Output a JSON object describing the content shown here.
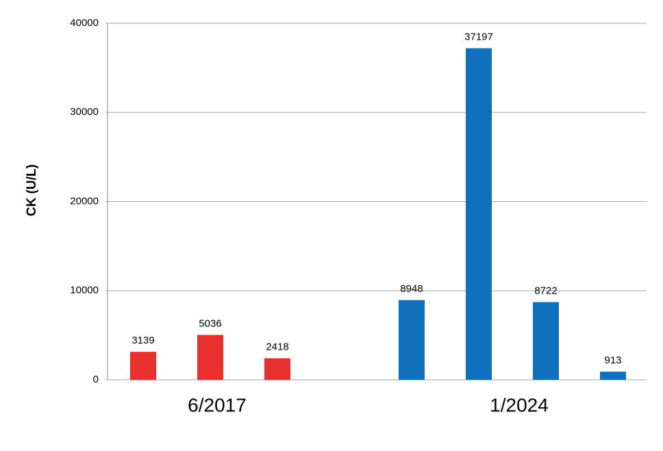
{
  "chart_data": {
    "type": "bar",
    "y_label": "CK (U/L)",
    "categories": [
      null,
      null,
      null,
      null,
      null,
      null,
      null,
      null
    ],
    "series": [
      {
        "name": "6/2017",
        "color": "#e8312f",
        "values": [
          3139,
          5036,
          2418,
          null,
          null,
          null,
          null,
          null
        ]
      },
      {
        "name": "1/2024",
        "color": "#0f70bd",
        "values": [
          null,
          null,
          null,
          null,
          8948,
          37197,
          8722,
          913
        ]
      }
    ],
    "ylim": [
      0,
      40000
    ],
    "yticks": [
      0,
      10000,
      20000,
      30000,
      40000
    ],
    "grid": true,
    "data_labels": true
  }
}
